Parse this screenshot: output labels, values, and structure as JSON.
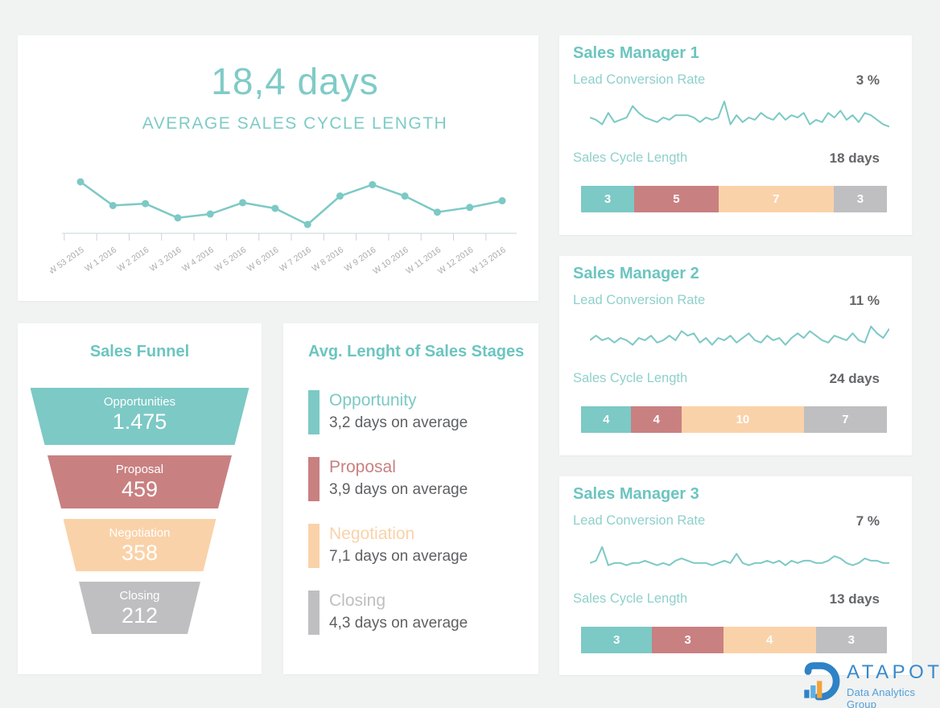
{
  "page": {
    "background": "#F1F2F2",
    "card_background": "#FFFFFF"
  },
  "palette": {
    "teal": "#7CC9C5",
    "red": "#C98081",
    "peach": "#FAD2A9",
    "gray": "#BFBFC1",
    "title_teal": "#6CC5C0",
    "label_teal": "#8FD0CC",
    "value_gray": "#646669",
    "axis_gray": "#A9ABAD",
    "axis_line": "#C9D4DB",
    "logo_blue": "#2E82C6",
    "logo_light_blue": "#5FAEE3",
    "logo_orange": "#F0A43C"
  },
  "chart_data": [
    {
      "type": "line",
      "headline": "18,4 days",
      "title": "AVERAGE SALES CYCLE LENGTH",
      "categories": [
        "W 53 2015",
        "W 1 2016",
        "W 2 2016",
        "W 3 2016",
        "W 4 2016",
        "W 5 2016",
        "W 6 2016",
        "W 7 2016",
        "W 8 2016",
        "W 9 2016",
        "W 10 2016",
        "W 11 2016",
        "W 12 2016",
        "W 13 2016"
      ],
      "values": [
        21.0,
        18.5,
        18.7,
        17.2,
        17.6,
        18.8,
        18.2,
        16.5,
        19.5,
        20.7,
        19.5,
        17.8,
        18.3,
        19.0
      ],
      "unit": "days",
      "ylim": [
        16,
        22
      ],
      "grid": false,
      "legend": false,
      "line_color": "#7CC9C5"
    },
    {
      "type": "funnel",
      "title": "Sales Funnel",
      "stages": [
        {
          "label": "Opportunities",
          "value": "1.475",
          "color": "#7CC9C5"
        },
        {
          "label": "Proposal",
          "value": "459",
          "color": "#C98081"
        },
        {
          "label": "Negotiation",
          "value": "358",
          "color": "#FAD2A9"
        },
        {
          "label": "Closing",
          "value": "212",
          "color": "#BFBFC1"
        }
      ]
    },
    {
      "type": "bar",
      "title": "Avg. Lenght of Sales Stages",
      "items": [
        {
          "label": "Opportunity",
          "value": "3,2 days on average",
          "days": 3.2,
          "color": "#7CC9C5"
        },
        {
          "label": "Proposal",
          "value": "3,9 days on average",
          "days": 3.9,
          "color": "#C98081"
        },
        {
          "label": "Negotiation",
          "value": "7,1 days on average",
          "days": 7.1,
          "color": "#FAD2A9"
        },
        {
          "label": "Closing",
          "value": "4,3 days on average",
          "days": 4.3,
          "color": "#BFBFC1"
        }
      ]
    },
    {
      "type": "manager-card",
      "title": "Sales Manager 1",
      "lead_conversion_label": "Lead Conversion Rate",
      "lead_conversion_value": "3 %",
      "cycle_label": "Sales Cycle Length",
      "cycle_value": "18 days",
      "sparkline": [
        7,
        6,
        4,
        9,
        5,
        6,
        7,
        12,
        9,
        7,
        6,
        5,
        7,
        6,
        8,
        8,
        8,
        7,
        5,
        7,
        6,
        7,
        14,
        4,
        8,
        5,
        7,
        6,
        9,
        7,
        6,
        9,
        6,
        8,
        7,
        9,
        4,
        6,
        5,
        9,
        7,
        10,
        6,
        8,
        5,
        9,
        8,
        6,
        4,
        3
      ],
      "stacked_bar": {
        "values": [
          3,
          5,
          7,
          3
        ],
        "colors": [
          "#7CC9C5",
          "#C98081",
          "#FAD2A9",
          "#BFBFC1"
        ]
      }
    },
    {
      "type": "manager-card",
      "title": "Sales Manager 2",
      "lead_conversion_label": "Lead Conversion Rate",
      "lead_conversion_value": "11 %",
      "cycle_label": "Sales Cycle Length",
      "cycle_value": "24 days",
      "sparkline": [
        6,
        8,
        6,
        7,
        5,
        7,
        6,
        4,
        7,
        6,
        8,
        5,
        6,
        8,
        6,
        10,
        8,
        9,
        5,
        7,
        4,
        7,
        6,
        8,
        5,
        7,
        9,
        6,
        5,
        8,
        6,
        7,
        4,
        7,
        9,
        7,
        10,
        8,
        6,
        5,
        8,
        7,
        6,
        9,
        6,
        5,
        12,
        9,
        7,
        11
      ],
      "stacked_bar": {
        "values": [
          4,
          4,
          10,
          7
        ],
        "colors": [
          "#7CC9C5",
          "#C98081",
          "#FAD2A9",
          "#BFBFC1"
        ]
      }
    },
    {
      "type": "manager-card",
      "title": "Sales Manager 3",
      "lead_conversion_label": "Lead Conversion Rate",
      "lead_conversion_value": "7 %",
      "cycle_label": "Sales Cycle Length",
      "cycle_value": "13 days",
      "sparkline": [
        5,
        6,
        12,
        4,
        5,
        5,
        4,
        5,
        5,
        6,
        5,
        4,
        5,
        4,
        6,
        7,
        6,
        5,
        5,
        5,
        4,
        5,
        6,
        5,
        9,
        5,
        4,
        5,
        5,
        6,
        5,
        6,
        4,
        6,
        5,
        6,
        6,
        5,
        5,
        6,
        8,
        7,
        5,
        4,
        5,
        7,
        6,
        6,
        5,
        5
      ],
      "stacked_bar": {
        "values": [
          3,
          3,
          4,
          3
        ],
        "colors": [
          "#7CC9C5",
          "#C98081",
          "#FAD2A9",
          "#BFBFC1"
        ]
      }
    }
  ],
  "logo": {
    "wordmark": "DATAPOT",
    "wordmark_after_icon": "ATAPOT",
    "tagline": "Data Analytics Group"
  }
}
